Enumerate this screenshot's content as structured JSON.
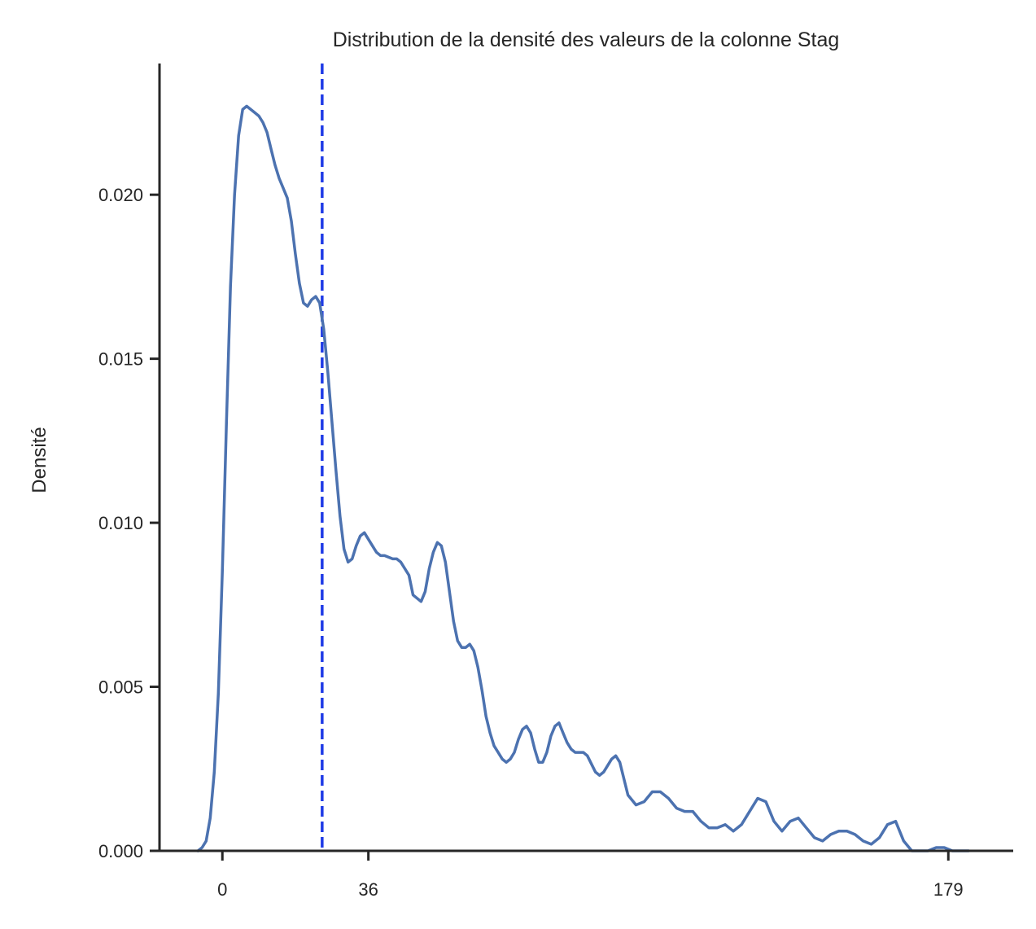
{
  "chart_data": {
    "type": "line",
    "title": "Distribution de la densité des valeurs de la colonne Stag",
    "xlabel": "",
    "ylabel": "Densité",
    "xlim": [
      -15.5,
      195
    ],
    "ylim": [
      0,
      0.024
    ],
    "x_ticks": [
      0,
      36,
      179
    ],
    "x_tick_labels": [
      "0",
      "36",
      "179"
    ],
    "y_ticks": [
      0,
      0.005,
      0.01,
      0.015,
      0.02
    ],
    "y_tick_labels": [
      "0.000",
      "0.005",
      "0.010",
      "0.015",
      "0.020"
    ],
    "grid": false,
    "colors": {
      "density": "#4c72b0",
      "reference_line": "#1f3be6",
      "axes": "#262626"
    },
    "reference_line": {
      "x": 24.6,
      "style": "dashed"
    },
    "series": [
      {
        "x": [
          -6,
          -5,
          -4,
          -3,
          -2,
          -1,
          0,
          1,
          2,
          3,
          4,
          5,
          6,
          7,
          8,
          9,
          10,
          11,
          12,
          13,
          14,
          15,
          16,
          17,
          18,
          19,
          20,
          21,
          22,
          23,
          24,
          25,
          26,
          27,
          28,
          29,
          30,
          31,
          32,
          33,
          34,
          35,
          36,
          37,
          38,
          39,
          40,
          42,
          43,
          44,
          46,
          47,
          49,
          50,
          51,
          52,
          53,
          54,
          55,
          56,
          57,
          58,
          59,
          60,
          61,
          62,
          63,
          64,
          65,
          66,
          67,
          68,
          69,
          70,
          71,
          72,
          73,
          74,
          75,
          76,
          77,
          78,
          79,
          80,
          81,
          82,
          83,
          84,
          85,
          86,
          87,
          88,
          89,
          90,
          92,
          93,
          94,
          95,
          96,
          97,
          98,
          100,
          102,
          104,
          106,
          108,
          110,
          112,
          114,
          116,
          118,
          120,
          122,
          124,
          126,
          128,
          130,
          132,
          134,
          136,
          138,
          140,
          142,
          144,
          146,
          148,
          150,
          152,
          154,
          156,
          158,
          160,
          162,
          164,
          166,
          168,
          170,
          172,
          174,
          176,
          178,
          180,
          182,
          184
        ],
        "y": [
          0.0,
          0.0001,
          0.0003,
          0.001,
          0.0024,
          0.0048,
          0.0085,
          0.013,
          0.0172,
          0.02,
          0.0218,
          0.0226,
          0.0227,
          0.0226,
          0.0225,
          0.0224,
          0.0222,
          0.0219,
          0.0214,
          0.0209,
          0.0205,
          0.0202,
          0.0199,
          0.0192,
          0.0182,
          0.0173,
          0.0167,
          0.0166,
          0.0168,
          0.0169,
          0.0167,
          0.0159,
          0.0146,
          0.0131,
          0.0116,
          0.0102,
          0.0092,
          0.0088,
          0.0089,
          0.0093,
          0.0096,
          0.0097,
          0.0095,
          0.0093,
          0.0091,
          0.009,
          0.009,
          0.0089,
          0.0089,
          0.0088,
          0.0084,
          0.0078,
          0.0076,
          0.0079,
          0.0086,
          0.0091,
          0.0094,
          0.0093,
          0.0088,
          0.0079,
          0.007,
          0.0064,
          0.0062,
          0.0062,
          0.0063,
          0.0061,
          0.0056,
          0.0049,
          0.0041,
          0.0036,
          0.0032,
          0.003,
          0.0028,
          0.0027,
          0.0028,
          0.003,
          0.0034,
          0.0037,
          0.0038,
          0.0036,
          0.0031,
          0.0027,
          0.0027,
          0.003,
          0.0035,
          0.0038,
          0.0039,
          0.0036,
          0.0033,
          0.0031,
          0.003,
          0.003,
          0.003,
          0.0029,
          0.0024,
          0.0023,
          0.0024,
          0.0026,
          0.0028,
          0.0029,
          0.0027,
          0.0017,
          0.0014,
          0.0015,
          0.0018,
          0.0018,
          0.0016,
          0.0013,
          0.0012,
          0.0012,
          0.0009,
          0.0007,
          0.0007,
          0.0008,
          0.0006,
          0.0008,
          0.0012,
          0.0016,
          0.0015,
          0.0009,
          0.0006,
          0.0009,
          0.001,
          0.0007,
          0.0004,
          0.0003,
          0.0005,
          0.0006,
          0.0006,
          0.0005,
          0.0003,
          0.0002,
          0.0004,
          0.0008,
          0.0009,
          0.0003,
          0.0,
          0.0,
          0.0,
          0.0001,
          0.0001,
          0.0,
          0.0,
          0.0
        ]
      }
    ]
  }
}
